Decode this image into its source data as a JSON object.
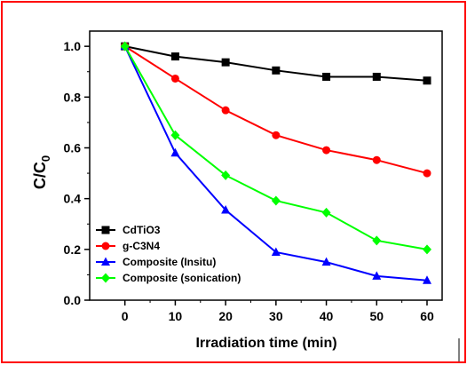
{
  "chart_data": {
    "type": "line",
    "title": "",
    "xlabel": "Irradiation time (min)",
    "ylabel_main": "C/C",
    "ylabel_sub": "0",
    "xlim": [
      -7,
      63
    ],
    "ylim": [
      0.0,
      1.06
    ],
    "xticks": [
      0,
      10,
      20,
      30,
      40,
      50,
      60
    ],
    "yticks": [
      0.0,
      0.2,
      0.4,
      0.6,
      0.8,
      1.0
    ],
    "x": [
      0,
      10,
      20,
      30,
      40,
      50,
      60
    ],
    "grid": false,
    "legend_position": "bottom-left",
    "series": [
      {
        "name": "CdTiO3",
        "color": "#000000",
        "marker": "square",
        "values": [
          1.0,
          0.96,
          0.937,
          0.905,
          0.88,
          0.88,
          0.865
        ]
      },
      {
        "name": "g-C3N4",
        "color": "#ff0000",
        "marker": "circle",
        "values": [
          1.0,
          0.873,
          0.748,
          0.65,
          0.591,
          0.552,
          0.5
        ]
      },
      {
        "name": "Composite (Insitu)",
        "color": "#0000ff",
        "marker": "triangle",
        "values": [
          1.0,
          0.58,
          0.355,
          0.189,
          0.15,
          0.095,
          0.078
        ]
      },
      {
        "name": "Composite (sonication)",
        "color": "#00ff00",
        "marker": "diamond",
        "values": [
          1.0,
          0.65,
          0.492,
          0.392,
          0.345,
          0.235,
          0.2
        ]
      }
    ]
  }
}
